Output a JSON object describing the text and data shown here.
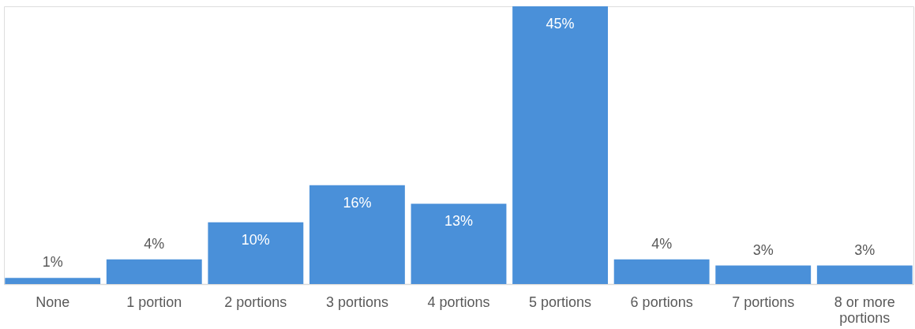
{
  "chart_data": {
    "type": "bar",
    "categories": [
      "None",
      "1 portion",
      "2 portions",
      "3 portions",
      "4 portions",
      "5 portions",
      "6 portions",
      "7 portions",
      "8 or more portions"
    ],
    "values": [
      1,
      4,
      10,
      16,
      13,
      45,
      4,
      3,
      3
    ],
    "value_labels": [
      "1%",
      "4%",
      "10%",
      "16%",
      "13%",
      "45%",
      "4%",
      "3%",
      "3%"
    ],
    "color": "#4a90d9",
    "grid": false
  }
}
